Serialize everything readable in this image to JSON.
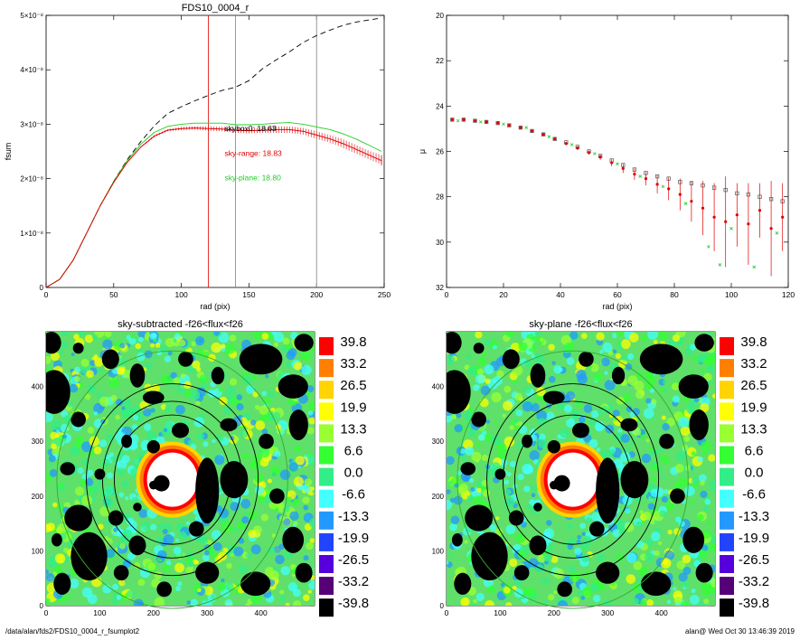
{
  "footer": {
    "left": "/data/alan/fds2/FDS10_0004_r_fsumplot2",
    "right": "alan@  Wed Oct 30 13:46:39 2019"
  },
  "chart_data": [
    {
      "type": "line",
      "title": "FDS10_0004_r",
      "xlabel": "rad (pix)",
      "ylabel": "fsum",
      "xlim": [
        0,
        250
      ],
      "ylim": [
        0,
        5e-08
      ],
      "xticks": [
        "0",
        "50",
        "100",
        "150",
        "200",
        "250"
      ],
      "yticks": [
        "0",
        "1×10⁻⁸",
        "2×10⁻⁸",
        "3×10⁻⁸",
        "4×10⁻⁸",
        "5×10⁻⁸"
      ],
      "ytick_values": [
        0,
        1e-08,
        2e-08,
        3e-08,
        4e-08,
        5e-08
      ],
      "vlines": [
        {
          "x": 120,
          "color": "#e00000"
        },
        {
          "x": 140,
          "color": "#808080"
        },
        {
          "x": 200,
          "color": "#808080"
        }
      ],
      "annotations": [
        {
          "text": "skybox0: 18.63",
          "color": "#000000",
          "x": 132,
          "y": 2.87e-08
        },
        {
          "text": "sky-range: 18.83",
          "color": "#e00000",
          "x": 132,
          "y": 2.42e-08
        },
        {
          "text": "sky-plane: 18.80",
          "color": "#22cc22",
          "x": 132,
          "y": 1.97e-08
        }
      ],
      "series": [
        {
          "style": "dashed",
          "color": "#000000",
          "x": [
            0,
            10,
            20,
            30,
            40,
            50,
            60,
            70,
            80,
            90,
            100,
            110,
            120,
            130,
            140,
            150,
            160,
            170,
            180,
            190,
            200,
            210,
            220,
            230,
            240,
            248
          ],
          "y": [
            0,
            1.5e-09,
            5e-09,
            1e-08,
            1.5e-08,
            1.95e-08,
            2.35e-08,
            2.68e-08,
            2.97e-08,
            3.2e-08,
            3.32e-08,
            3.43e-08,
            3.53e-08,
            3.62e-08,
            3.68e-08,
            3.8e-08,
            4.02e-08,
            4.18e-08,
            4.33e-08,
            4.5e-08,
            4.63e-08,
            4.73e-08,
            4.82e-08,
            4.88e-08,
            4.92e-08,
            4.95e-08
          ]
        },
        {
          "style": "solid",
          "color": "#22cc22",
          "x": [
            0,
            10,
            20,
            30,
            40,
            50,
            60,
            70,
            80,
            90,
            100,
            110,
            120,
            130,
            140,
            150,
            160,
            170,
            180,
            190,
            200,
            210,
            220,
            230,
            240,
            248
          ],
          "y": [
            0,
            1.5e-09,
            5e-09,
            1e-08,
            1.5e-08,
            1.95e-08,
            2.33e-08,
            2.63e-08,
            2.85e-08,
            2.96e-08,
            3e-08,
            3.02e-08,
            3.02e-08,
            3.02e-08,
            2.99e-08,
            2.99e-08,
            3e-08,
            3.02e-08,
            3.03e-08,
            3e-08,
            2.95e-08,
            2.9e-08,
            2.82e-08,
            2.72e-08,
            2.6e-08,
            2.5e-08
          ]
        },
        {
          "style": "errorbar",
          "color": "#e00000",
          "x": [
            0,
            10,
            20,
            30,
            40,
            50,
            60,
            70,
            80,
            90,
            100,
            110,
            120,
            130,
            140,
            150,
            160,
            170,
            180,
            190,
            200,
            210,
            220,
            230,
            240,
            248
          ],
          "y": [
            0,
            1.5e-09,
            5e-09,
            1e-08,
            1.5e-08,
            1.93e-08,
            2.3e-08,
            2.58e-08,
            2.78e-08,
            2.89e-08,
            2.92e-08,
            2.93e-08,
            2.92e-08,
            2.91e-08,
            2.89e-08,
            2.88e-08,
            2.89e-08,
            2.9e-08,
            2.9e-08,
            2.87e-08,
            2.8e-08,
            2.73e-08,
            2.64e-08,
            2.53e-08,
            2.42e-08,
            2.33e-08
          ],
          "err": [
            0,
            0,
            0,
            0,
            0,
            0,
            1e-10,
            1e-10,
            2e-10,
            2e-10,
            3e-10,
            3e-10,
            4e-10,
            4e-10,
            5e-10,
            5e-10,
            5e-10,
            6e-10,
            6e-10,
            6e-10,
            7e-10,
            7e-10,
            8e-10,
            8e-10,
            8e-10,
            9e-10
          ]
        }
      ]
    },
    {
      "type": "scatter",
      "title": "",
      "xlabel": "rad (pix)",
      "ylabel": "μ",
      "xlim": [
        0,
        120
      ],
      "ylim": [
        32,
        20
      ],
      "xticks": [
        "0",
        "20",
        "40",
        "60",
        "80",
        "100",
        "120"
      ],
      "yticks": [
        "20",
        "22",
        "24",
        "26",
        "28",
        "30",
        "32"
      ],
      "series": [
        {
          "name": "",
          "marker": "open-square",
          "color": "#555555",
          "x": [
            2,
            6,
            10,
            14,
            18,
            22,
            26,
            30,
            34,
            38,
            42,
            46,
            50,
            54,
            58,
            62,
            66,
            70,
            74,
            78,
            82,
            86,
            90,
            94,
            98,
            102,
            106,
            110,
            114,
            118
          ],
          "y": [
            24.6,
            24.6,
            24.65,
            24.7,
            24.75,
            24.85,
            24.95,
            25.1,
            25.25,
            25.45,
            25.6,
            25.8,
            26.0,
            26.2,
            26.4,
            26.6,
            26.8,
            26.95,
            27.1,
            27.2,
            27.35,
            27.4,
            27.5,
            27.6,
            27.7,
            27.85,
            27.9,
            28.0,
            28.1,
            28.2
          ]
        },
        {
          "name": "",
          "marker": "circle",
          "color": "#e00000",
          "x": [
            2,
            6,
            10,
            14,
            18,
            22,
            26,
            30,
            34,
            38,
            42,
            46,
            50,
            54,
            58,
            62,
            66,
            70,
            74,
            78,
            82,
            86,
            90,
            94,
            98,
            102,
            106,
            110,
            114,
            118
          ],
          "y": [
            24.6,
            24.6,
            24.65,
            24.7,
            24.75,
            24.85,
            24.95,
            25.1,
            25.25,
            25.45,
            25.65,
            25.85,
            26.05,
            26.25,
            26.5,
            26.75,
            27.0,
            27.2,
            27.45,
            27.65,
            27.9,
            28.2,
            28.5,
            28.9,
            29.1,
            28.8,
            29.2,
            28.6,
            29.4,
            28.9
          ],
          "err": [
            0.05,
            0.05,
            0.05,
            0.05,
            0.05,
            0.05,
            0.05,
            0.06,
            0.06,
            0.07,
            0.08,
            0.09,
            0.1,
            0.12,
            0.15,
            0.2,
            0.25,
            0.3,
            0.4,
            0.5,
            0.7,
            0.9,
            1.2,
            1.5,
            2.0,
            1.4,
            1.8,
            1.2,
            2.1,
            1.5
          ]
        },
        {
          "name": "",
          "marker": "x",
          "color": "#22cc22",
          "x": [
            4,
            12,
            20,
            28,
            36,
            44,
            52,
            60,
            68,
            76,
            84,
            92,
            96,
            100,
            108,
            116
          ],
          "y": [
            24.65,
            24.7,
            24.8,
            24.95,
            25.35,
            25.7,
            26.1,
            26.55,
            27.1,
            27.55,
            28.3,
            30.2,
            31.0,
            29.4,
            31.1,
            29.6
          ]
        }
      ]
    },
    {
      "type": "heatmap",
      "title": "sky-subtracted -f26<flux<f26",
      "xlim": [
        0,
        500
      ],
      "ylim": [
        0,
        500
      ],
      "xticks": [
        "0",
        "100",
        "200",
        "300",
        "400"
      ],
      "yticks": [
        "0",
        "100",
        "200",
        "300",
        "400"
      ],
      "center": [
        235,
        230
      ],
      "ellipses": [
        {
          "rx": 160,
          "ry": 175,
          "color": "#000000"
        },
        {
          "rx": 130,
          "ry": 143,
          "color": "#000000"
        },
        {
          "rx": 108,
          "ry": 118,
          "color": "#000000"
        },
        {
          "rx": 215,
          "ry": 235,
          "color": "#3aa830"
        }
      ],
      "colorbar": {
        "labels": [
          "39.8",
          "33.2",
          "26.5",
          "19.9",
          "13.3",
          "6.6",
          "0.0",
          "-6.6",
          "-13.3",
          "-19.9",
          "-26.5",
          "-33.2",
          "-39.8"
        ],
        "colors": [
          "#ff0000",
          "#ff7f00",
          "#ffd400",
          "#ffff00",
          "#99ff33",
          "#33ff33",
          "#33ee88",
          "#44ffff",
          "#2299ff",
          "#2244ff",
          "#5500dd",
          "#550077",
          "#000000"
        ]
      }
    },
    {
      "type": "heatmap",
      "title": "sky-plane -f26<flux<f26",
      "xlim": [
        0,
        500
      ],
      "ylim": [
        0,
        500
      ],
      "xticks": [
        "0",
        "100",
        "200",
        "300",
        "400"
      ],
      "yticks": [
        "0",
        "100",
        "200",
        "300",
        "400"
      ],
      "center": [
        235,
        230
      ],
      "ellipses": [
        {
          "rx": 160,
          "ry": 175,
          "color": "#000000"
        },
        {
          "rx": 130,
          "ry": 143,
          "color": "#000000"
        },
        {
          "rx": 108,
          "ry": 118,
          "color": "#000000"
        },
        {
          "rx": 215,
          "ry": 235,
          "color": "#3aa830"
        }
      ],
      "colorbar": {
        "labels": [
          "39.8",
          "33.2",
          "26.5",
          "19.9",
          "13.3",
          "6.6",
          "0.0",
          "-6.6",
          "-13.3",
          "-19.9",
          "-26.5",
          "-33.2",
          "-39.8"
        ],
        "colors": [
          "#ff0000",
          "#ff7f00",
          "#ffd400",
          "#ffff00",
          "#99ff33",
          "#33ff33",
          "#33ee88",
          "#44ffff",
          "#2299ff",
          "#2244ff",
          "#5500dd",
          "#550077",
          "#000000"
        ]
      }
    }
  ]
}
